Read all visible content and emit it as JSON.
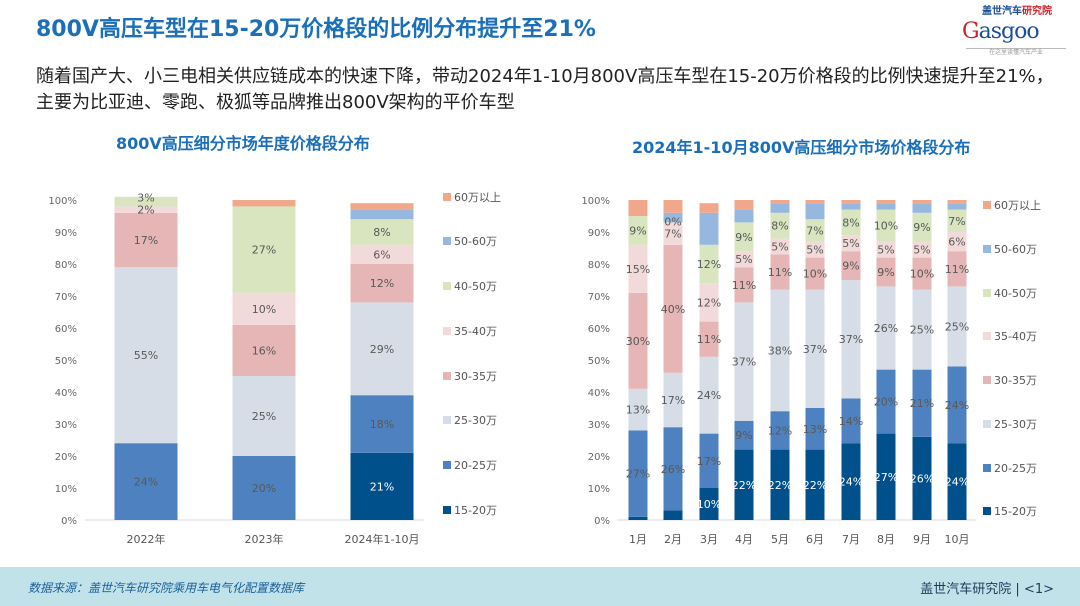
{
  "header": {
    "title": "800V高压车型在15-20万价格段的比例分布提升至21%",
    "subtitle": "随着国产大、小三电相关供应链成本的快速下降，带动2024年1-10月800V高压车型在15-20万价格段的比例快速提升至21%，主要为比亚迪、零跑、极狐等品牌推出800V架构的平价车型",
    "logo": {
      "cn_a": "盖世汽车",
      "cn_b": "研究院",
      "en_a": "G",
      "en_b": "asgoo",
      "tagline": "在这里读懂汽车产业"
    }
  },
  "footer": {
    "source": "数据来源：盖世汽车研究院乘用车电气化配置数据库",
    "brand": "盖世汽车研究院 | <1>"
  },
  "colors": {
    "15-20万": "#00508c",
    "20-25万": "#4e81bf",
    "25-30万": "#d7dde7",
    "30-35万": "#e6b5b5",
    "35-40万": "#f3dada",
    "40-50万": "#d8e5be",
    "50-60万": "#96b8df",
    "60万以上": "#f1a88a"
  },
  "chart_data": [
    {
      "type": "bar",
      "stacked": true,
      "title": "800V高压细分市场年度价格段分布",
      "categories": [
        "2022年",
        "2023年",
        "2024年1-10月"
      ],
      "yticks": [
        "0%",
        "10%",
        "20%",
        "30%",
        "40%",
        "50%",
        "60%",
        "70%",
        "80%",
        "90%",
        "100%"
      ],
      "ylim": [
        0,
        100
      ],
      "legend_position": "right",
      "series": [
        {
          "name": "15-20万",
          "values": [
            0,
            0,
            21
          ],
          "labels": [
            "",
            "",
            "21%"
          ]
        },
        {
          "name": "20-25万",
          "values": [
            24,
            20,
            18
          ],
          "labels": [
            "24%",
            "20%",
            "18%"
          ]
        },
        {
          "name": "25-30万",
          "values": [
            55,
            25,
            29
          ],
          "labels": [
            "55%",
            "25%",
            "29%"
          ]
        },
        {
          "name": "30-35万",
          "values": [
            17,
            16,
            12
          ],
          "labels": [
            "17%",
            "16%",
            "12%"
          ]
        },
        {
          "name": "35-40万",
          "values": [
            2,
            10,
            6
          ],
          "labels": [
            "2%",
            "10%",
            "6%"
          ]
        },
        {
          "name": "40-50万",
          "values": [
            3,
            27,
            8
          ],
          "labels": [
            "3%",
            "27%",
            "8%"
          ]
        },
        {
          "name": "50-60万",
          "values": [
            0,
            0,
            3
          ],
          "labels": [
            "",
            "",
            ""
          ]
        },
        {
          "name": "60万以上",
          "values": [
            0,
            2,
            2
          ],
          "labels": [
            "",
            "",
            ""
          ]
        }
      ]
    },
    {
      "type": "bar",
      "stacked": true,
      "title": "2024年1-10月800V高压细分市场价格段分布",
      "categories": [
        "1月",
        "2月",
        "3月",
        "4月",
        "5月",
        "6月",
        "7月",
        "8月",
        "9月",
        "10月"
      ],
      "yticks": [
        "0%",
        "10%",
        "20%",
        "30%",
        "40%",
        "50%",
        "60%",
        "70%",
        "80%",
        "90%",
        "100%"
      ],
      "ylim": [
        0,
        100
      ],
      "legend_position": "right",
      "series": [
        {
          "name": "15-20万",
          "values": [
            1,
            3,
            10,
            22,
            22,
            22,
            24,
            27,
            26,
            24
          ],
          "labels": [
            "",
            "",
            "10%",
            "22%",
            "22%",
            "22%",
            "24%",
            "27%",
            "26%",
            "24%"
          ]
        },
        {
          "name": "20-25万",
          "values": [
            27,
            26,
            17,
            9,
            12,
            13,
            14,
            20,
            21,
            24
          ],
          "labels": [
            "27%",
            "26%",
            "17%",
            "9%",
            "12%",
            "13%",
            "14%",
            "20%",
            "21%",
            "24%"
          ]
        },
        {
          "name": "25-30万",
          "values": [
            13,
            17,
            24,
            37,
            38,
            37,
            37,
            26,
            25,
            25
          ],
          "labels": [
            "13%",
            "17%",
            "24%",
            "37%",
            "38%",
            "37%",
            "37%",
            "26%",
            "25%",
            "25%"
          ]
        },
        {
          "name": "30-35万",
          "values": [
            30,
            40,
            11,
            11,
            11,
            10,
            9,
            9,
            10,
            11
          ],
          "labels": [
            "30%",
            "40%",
            "11%",
            "11%",
            "11%",
            "10%",
            "9%",
            "9%",
            "10%",
            "11%"
          ]
        },
        {
          "name": "35-40万",
          "values": [
            15,
            7,
            12,
            5,
            5,
            5,
            5,
            5,
            5,
            6
          ],
          "labels": [
            "15%",
            "7%",
            "12%",
            "5%",
            "5%",
            "5%",
            "5%",
            "5%",
            "5%",
            "6%"
          ]
        },
        {
          "name": "40-50万",
          "values": [
            9,
            0,
            12,
            9,
            8,
            7,
            8,
            10,
            9,
            7
          ],
          "labels": [
            "9%",
            "0%",
            "12%",
            "9%",
            "8%",
            "7%",
            "8%",
            "10%",
            "9%",
            "7%"
          ]
        },
        {
          "name": "50-60万",
          "values": [
            0,
            3,
            10,
            4,
            3,
            5,
            2,
            2,
            3,
            2
          ],
          "labels": [
            "",
            "",
            "",
            "",
            "",
            "",
            "",
            "",
            "",
            ""
          ]
        },
        {
          "name": "60万以上",
          "values": [
            5,
            4,
            3,
            3,
            1,
            1,
            1,
            1,
            1,
            1
          ],
          "labels": [
            "",
            "",
            "",
            "",
            "",
            "",
            "",
            "",
            "",
            ""
          ]
        }
      ]
    }
  ]
}
